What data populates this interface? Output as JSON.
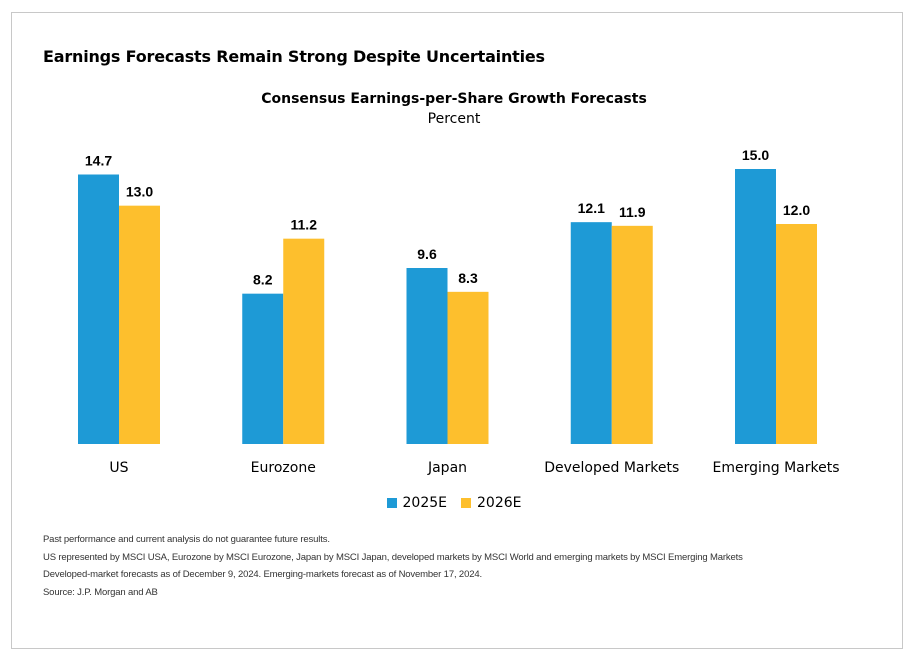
{
  "headline": "Earnings Forecasts Remain Strong Despite Uncertainties",
  "colors": {
    "series_2025": "#1e9ad6",
    "series_2026": "#fdbf2d"
  },
  "chart_data": {
    "type": "bar",
    "title": "Consensus Earnings-per-Share Growth Forecasts",
    "subtitle": "Percent",
    "categories": [
      "US",
      "Eurozone",
      "Japan",
      "Developed Markets",
      "Emerging Markets"
    ],
    "series": [
      {
        "name": "2025E",
        "values": [
          14.7,
          8.2,
          9.6,
          12.1,
          15.0
        ],
        "labels": [
          "14.7",
          "8.2",
          "9.6",
          "12.1",
          "15.0"
        ]
      },
      {
        "name": "2026E",
        "values": [
          13.0,
          11.2,
          8.3,
          11.9,
          12.0
        ],
        "labels": [
          "13.0",
          "11.2",
          "8.3",
          "11.9",
          "12.0"
        ]
      }
    ],
    "ylim": [
      0,
      15
    ],
    "grid": false,
    "legend": "bottom"
  },
  "notes": [
    "Past performance and current analysis do not guarantee future results.",
    "US represented by MSCI USA, Eurozone by MSCI Eurozone, Japan by MSCI Japan, developed markets by MSCI World and emerging markets by MSCI Emerging Markets",
    "Developed-market forecasts as of December 9, 2024. Emerging-markets forecast as of November 17, 2024.",
    "Source: J.P. Morgan and AB"
  ]
}
